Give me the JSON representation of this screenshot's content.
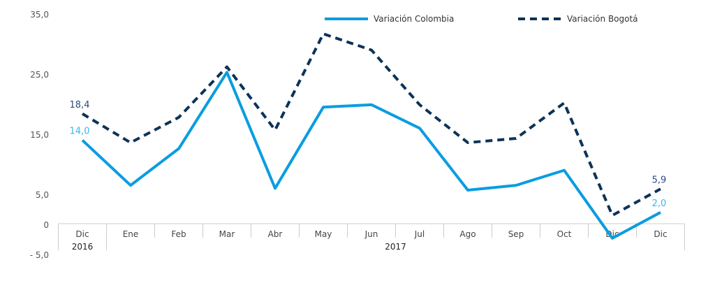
{
  "chart_data": {
    "type": "line",
    "categories": [
      "Dic",
      "Ene",
      "Feb",
      "Mar",
      "Abr",
      "May",
      "Jun",
      "Jul",
      "Ago",
      "Sep",
      "Oct",
      "Dic",
      "Dic"
    ],
    "year_groups": [
      {
        "label": "2016",
        "span": 1
      },
      {
        "label": "2017",
        "span": 12
      }
    ],
    "ylim": [
      -5,
      35
    ],
    "yticks": [
      {
        "v": 35,
        "label": "35,0"
      },
      {
        "v": 25,
        "label": "25,0"
      },
      {
        "v": 15,
        "label": "15,0"
      },
      {
        "v": 5,
        "label": "5,0"
      },
      {
        "v": 0,
        "label": "0"
      },
      {
        "v": -5,
        "label": "- 5,0"
      }
    ],
    "grid": false,
    "legend": "top-right",
    "series": [
      {
        "name": "Variación Colombia",
        "color": "#0a9de0",
        "style": "solid",
        "values": [
          14.0,
          6.5,
          12.6,
          25.3,
          6.0,
          19.5,
          19.9,
          16.0,
          5.7,
          6.5,
          9.0,
          -2.3,
          2.0
        ],
        "labels": {
          "first": "14,0",
          "last": "2,0"
        }
      },
      {
        "name": "Variación Bogotá",
        "color": "#0c3358",
        "style": "dashed",
        "values": [
          18.4,
          13.6,
          17.8,
          26.2,
          15.7,
          31.7,
          29.0,
          19.9,
          13.6,
          14.3,
          20.2,
          1.5,
          5.9
        ],
        "labels": {
          "first": "18,4",
          "last": "5,9"
        }
      }
    ]
  }
}
